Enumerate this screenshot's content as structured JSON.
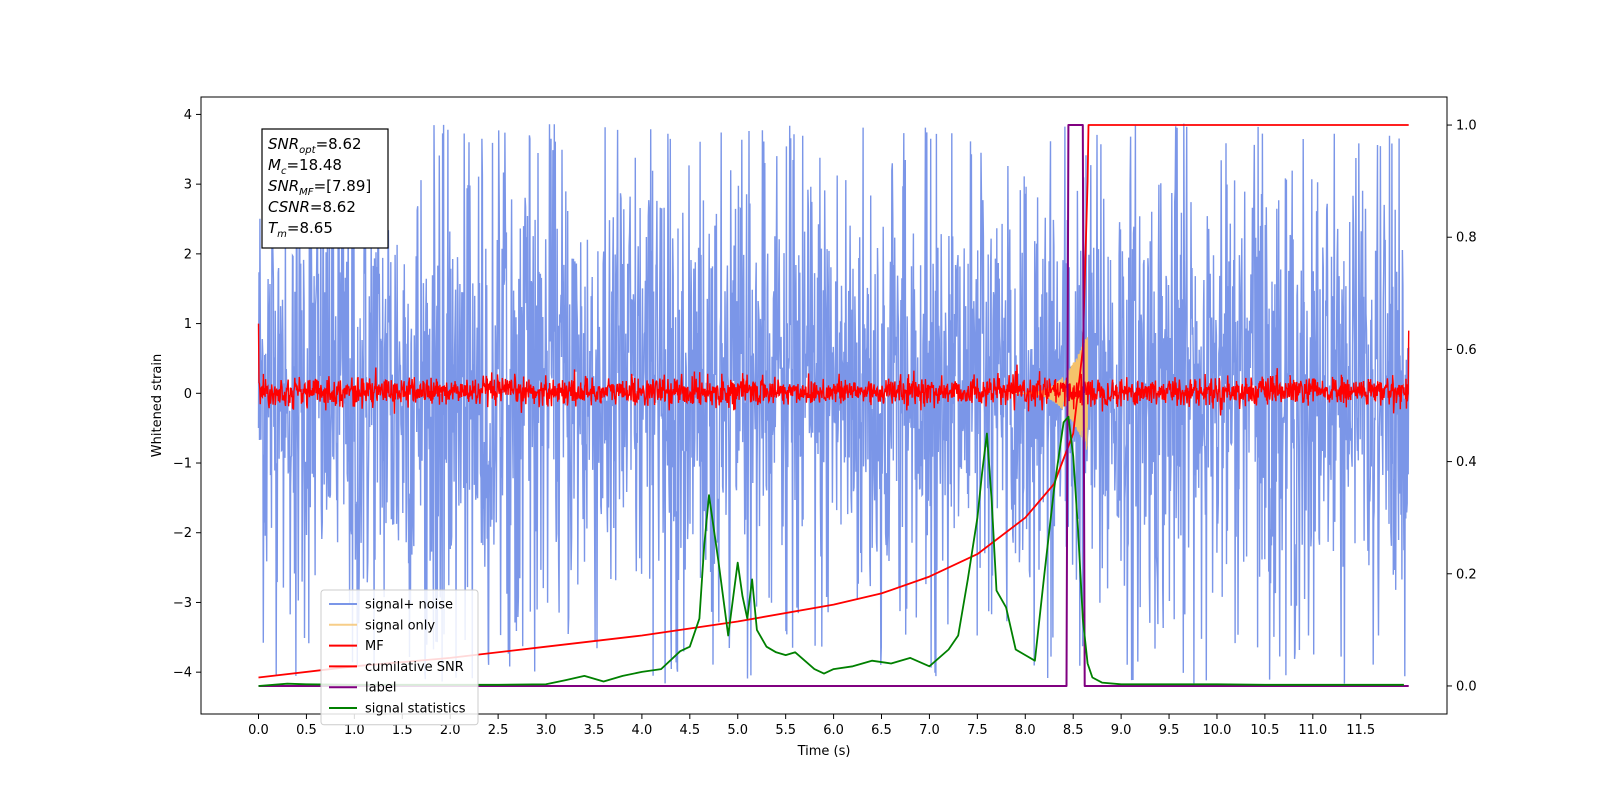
{
  "chart_data": {
    "type": "line",
    "title": "",
    "xlabel": "Time (s)",
    "ylabel": "Whitened strain",
    "y2label": "",
    "xlim": [
      -0.6,
      12.4
    ],
    "ylim": [
      -4.6,
      4.25
    ],
    "y2lim": [
      -0.05,
      1.05
    ],
    "x_ticks": [
      0.0,
      0.5,
      1.0,
      1.5,
      2.0,
      2.5,
      3.0,
      3.5,
      4.0,
      4.5,
      5.0,
      5.5,
      6.0,
      6.5,
      7.0,
      7.5,
      8.0,
      8.5,
      9.0,
      9.5,
      10.0,
      10.5,
      11.0,
      11.5
    ],
    "y_ticks": [
      -4,
      -3,
      -2,
      -1,
      0,
      1,
      2,
      3,
      4
    ],
    "y2_ticks": [
      0.0,
      0.2,
      0.4,
      0.6,
      0.8,
      1.0
    ],
    "grid": false,
    "legend_position": "lower-left",
    "annotation": {
      "lines": [
        {
          "main": "SNR",
          "sub": "opt",
          "value": "=8.62"
        },
        {
          "main": "M",
          "sub": "c",
          "value": "=18.48"
        },
        {
          "main": "SNR",
          "sub": "MF",
          "value": "=[7.89]"
        },
        {
          "main": "CSNR",
          "sub": "",
          "value": "=8.62"
        },
        {
          "main": "T",
          "sub": "m",
          "value": "=8.65"
        }
      ]
    },
    "series": [
      {
        "name": "signal+ noise",
        "color": "#7b96e8",
        "axis": "left",
        "kind": "noise",
        "x_range": [
          0.0,
          12.0
        ],
        "envelope_upper": 2.4,
        "envelope_lower": -2.3,
        "peak_max": 3.87,
        "peak_min": -4.17
      },
      {
        "name": "signal only",
        "color": "#f5c26b",
        "axis": "left",
        "kind": "chirp",
        "x_range": [
          7.9,
          8.65
        ],
        "amplitude_max": 0.85
      },
      {
        "name": "MF",
        "color": "#ff0000",
        "axis": "left",
        "kind": "noise",
        "x_range": [
          0.0,
          12.0
        ],
        "envelope_upper": 0.25,
        "envelope_lower": -0.2,
        "start_value": 1.0,
        "end_value": 0.9
      },
      {
        "name": "cumilative SNR",
        "color": "#ff0000",
        "axis": "right",
        "x": [
          0.0,
          1.0,
          2.0,
          3.0,
          4.0,
          5.0,
          6.0,
          6.5,
          7.0,
          7.5,
          8.0,
          8.3,
          8.5,
          8.6,
          8.65,
          8.66,
          12.0
        ],
        "y": [
          0.015,
          0.035,
          0.05,
          0.07,
          0.09,
          0.115,
          0.145,
          0.165,
          0.195,
          0.235,
          0.3,
          0.36,
          0.45,
          0.6,
          0.9,
          1.0,
          1.0
        ]
      },
      {
        "name": "label",
        "color": "#800080",
        "axis": "right",
        "x": [
          0.0,
          8.43,
          8.45,
          8.6,
          8.62,
          12.0
        ],
        "y": [
          0.0,
          0.0,
          1.0,
          1.0,
          0.0,
          0.0
        ]
      },
      {
        "name": "signal statistics",
        "color": "#008000",
        "axis": "right",
        "x": [
          0.0,
          0.3,
          0.5,
          1.0,
          1.5,
          2.0,
          2.5,
          3.0,
          3.2,
          3.4,
          3.6,
          3.8,
          4.0,
          4.2,
          4.4,
          4.5,
          4.6,
          4.65,
          4.7,
          4.8,
          4.9,
          5.0,
          5.05,
          5.1,
          5.15,
          5.2,
          5.3,
          5.4,
          5.5,
          5.6,
          5.7,
          5.8,
          5.9,
          6.0,
          6.2,
          6.4,
          6.6,
          6.8,
          7.0,
          7.2,
          7.3,
          7.4,
          7.5,
          7.55,
          7.6,
          7.65,
          7.7,
          7.8,
          7.9,
          8.0,
          8.1,
          8.2,
          8.3,
          8.4,
          8.45,
          8.5,
          8.55,
          8.6,
          8.65,
          8.7,
          8.8,
          9.0,
          9.5,
          10.0,
          10.5,
          11.0,
          11.5,
          11.95
        ],
        "y": [
          0.0,
          0.004,
          0.003,
          0.002,
          0.002,
          0.002,
          0.002,
          0.003,
          0.01,
          0.018,
          0.008,
          0.018,
          0.025,
          0.03,
          0.062,
          0.07,
          0.12,
          0.25,
          0.34,
          0.22,
          0.09,
          0.22,
          0.16,
          0.12,
          0.19,
          0.1,
          0.07,
          0.06,
          0.055,
          0.06,
          0.045,
          0.03,
          0.022,
          0.03,
          0.035,
          0.045,
          0.04,
          0.05,
          0.035,
          0.065,
          0.09,
          0.19,
          0.3,
          0.38,
          0.45,
          0.33,
          0.17,
          0.14,
          0.065,
          0.055,
          0.045,
          0.2,
          0.35,
          0.47,
          0.48,
          0.41,
          0.28,
          0.12,
          0.04,
          0.015,
          0.006,
          0.003,
          0.003,
          0.003,
          0.002,
          0.002,
          0.002,
          0.002
        ]
      }
    ]
  }
}
